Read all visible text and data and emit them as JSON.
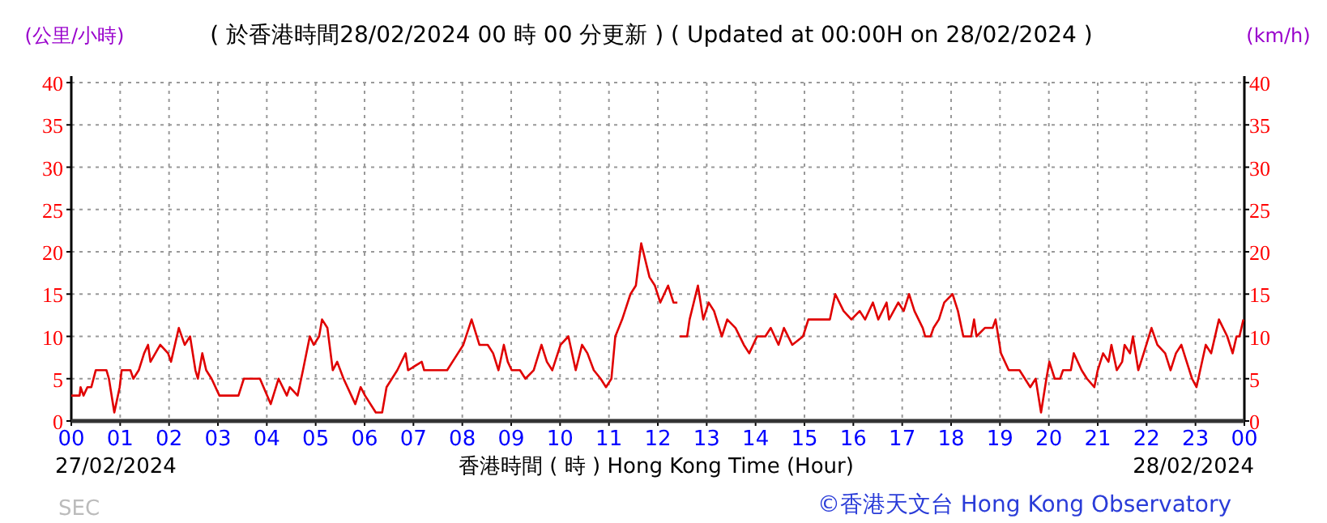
{
  "chart_data": {
    "type": "line",
    "title": "( 於香港時間28/02/2024 00 時 00 分更新 ) ( Updated at 00:00H on 28/02/2024 )",
    "xlabel": "香港時間 ( 時 ) Hong Kong Time (Hour)",
    "ylabel": "(公里/小時)",
    "y2label": "(km/h)",
    "annotations": [
      "27/02/2024",
      "28/02/2024",
      "©香港天文台 Hong Kong Observatory",
      "SEC"
    ],
    "xlim": [
      0,
      24
    ],
    "xticks": [
      {
        "value": 0,
        "label": "00"
      },
      {
        "value": 1,
        "label": "01"
      },
      {
        "value": 2,
        "label": "02"
      },
      {
        "value": 3,
        "label": "03"
      },
      {
        "value": 4,
        "label": "04"
      },
      {
        "value": 5,
        "label": "05"
      },
      {
        "value": 6,
        "label": "06"
      },
      {
        "value": 7,
        "label": "07"
      },
      {
        "value": 8,
        "label": "08"
      },
      {
        "value": 9,
        "label": "09"
      },
      {
        "value": 10,
        "label": "10"
      },
      {
        "value": 11,
        "label": "11"
      },
      {
        "value": 12,
        "label": "12"
      },
      {
        "value": 13,
        "label": "13"
      },
      {
        "value": 14,
        "label": "14"
      },
      {
        "value": 15,
        "label": "15"
      },
      {
        "value": 16,
        "label": "16"
      },
      {
        "value": 17,
        "label": "17"
      },
      {
        "value": 18,
        "label": "18"
      },
      {
        "value": 19,
        "label": "19"
      },
      {
        "value": 20,
        "label": "20"
      },
      {
        "value": 21,
        "label": "21"
      },
      {
        "value": 22,
        "label": "22"
      },
      {
        "value": 23,
        "label": "23"
      },
      {
        "value": 24,
        "label": "00"
      }
    ],
    "ylim": [
      0,
      40
    ],
    "yticks": [
      0,
      5,
      10,
      15,
      20,
      25,
      30,
      35,
      40
    ],
    "y2lim": [
      0,
      40
    ],
    "y2ticks": [
      0,
      5,
      10,
      15,
      20,
      25,
      30,
      35,
      40
    ],
    "grid": true,
    "series": [
      {
        "color": "#e00000",
        "x": [
          0,
          0.17,
          0.19,
          0.25,
          0.33,
          0.41,
          0.5,
          0.72,
          0.77,
          0.88,
          0.99,
          1.03,
          1.21,
          1.27,
          1.38,
          1.49,
          1.57,
          1.62,
          1.82,
          1.98,
          2.04,
          2.2,
          2.32,
          2.43,
          2.54,
          2.59,
          2.68,
          2.76,
          2.87,
          3.03,
          3.42,
          3.53,
          3.86,
          4.08,
          4.24,
          4.41,
          4.47,
          4.63,
          4.74,
          4.88,
          4.96,
          5.07,
          5.13,
          5.24,
          5.35,
          5.44,
          5.57,
          5.73,
          5.81,
          5.92,
          6.01,
          6.23,
          6.36,
          6.45,
          6.67,
          6.84,
          6.89,
          7.17,
          7.22,
          7.69,
          7.91,
          8.02,
          8.19,
          8.35,
          8.52,
          8.63,
          8.74,
          8.85,
          8.93,
          9.01,
          9.18,
          9.29,
          9.46,
          9.62,
          9.73,
          9.84,
          10.01,
          10.17,
          10.32,
          10.45,
          10.56,
          10.69,
          10.83,
          10.94,
          11.05,
          11.13,
          11.27,
          11.44,
          11.55,
          11.66,
          11.83,
          11.94,
          12.05,
          12.21,
          12.32,
          12.4,
          12.45,
          12.6,
          12.65,
          12.82,
          12.93,
          13.04,
          13.15,
          13.31,
          13.42,
          13.59,
          13.76,
          13.87,
          14.03,
          14.2,
          14.31,
          14.47,
          14.58,
          14.75,
          14.97,
          15.08,
          15.52,
          15.63,
          15.8,
          15.96,
          16.13,
          16.24,
          16.4,
          16.51,
          16.68,
          16.73,
          16.92,
          17.03,
          17.14,
          17.25,
          17.42,
          17.47,
          17.58,
          17.64,
          17.75,
          17.86,
          18.03,
          18.14,
          18.25,
          18.41,
          18.47,
          18.52,
          18.69,
          18.85,
          18.91,
          19.02,
          19.18,
          19.4,
          19.51,
          19.62,
          19.73,
          19.84,
          19.95,
          20.01,
          20.12,
          20.23,
          20.29,
          20.45,
          20.51,
          20.67,
          20.78,
          20.93,
          21.0,
          21.11,
          21.22,
          21.28,
          21.39,
          21.5,
          21.55,
          21.66,
          21.72,
          21.83,
          21.94,
          22.1,
          22.22,
          22.38,
          22.49,
          22.6,
          22.71,
          22.82,
          22.93,
          23.02,
          23.21,
          23.32,
          23.48,
          23.65,
          23.76,
          23.84,
          23.9,
          23.98
        ],
        "values": [
          3,
          3,
          4,
          3,
          4,
          4,
          6,
          6,
          5,
          1,
          4,
          6,
          6,
          5,
          6,
          8,
          9,
          7,
          9,
          8,
          7,
          11,
          9,
          10,
          6,
          5,
          8,
          6,
          5,
          3,
          3,
          5,
          5,
          2,
          5,
          3,
          4,
          3,
          6,
          10,
          9,
          10,
          12,
          11,
          6,
          7,
          5,
          3,
          2,
          4,
          3,
          1,
          1,
          4,
          6,
          8,
          6,
          7,
          6,
          6,
          8,
          9,
          12,
          9,
          9,
          8,
          6,
          9,
          7,
          6,
          6,
          5,
          6,
          9,
          7,
          6,
          9,
          10,
          6,
          9,
          8,
          6,
          5,
          4,
          5,
          10,
          12,
          15,
          16,
          21,
          17,
          16,
          14,
          16,
          14,
          null,
          10,
          10,
          12,
          16,
          12,
          14,
          13,
          10,
          12,
          11,
          9,
          8,
          10,
          10,
          11,
          9,
          11,
          9,
          10,
          12,
          12,
          15,
          13,
          12,
          13,
          12,
          14,
          12,
          14,
          12,
          14,
          13,
          15,
          13,
          11,
          10,
          10,
          11,
          12,
          14,
          15,
          13,
          10,
          10,
          12,
          10,
          11,
          11,
          12,
          8,
          6,
          6,
          5,
          4,
          5,
          1,
          5,
          7,
          5,
          5,
          6,
          6,
          8,
          6,
          5,
          4,
          6,
          8,
          7,
          9,
          6,
          7,
          9,
          8,
          10,
          6,
          8,
          11,
          9,
          8,
          6,
          8,
          9,
          7,
          5,
          4,
          9,
          8,
          12,
          10,
          8,
          10,
          10,
          12
        ]
      }
    ]
  }
}
